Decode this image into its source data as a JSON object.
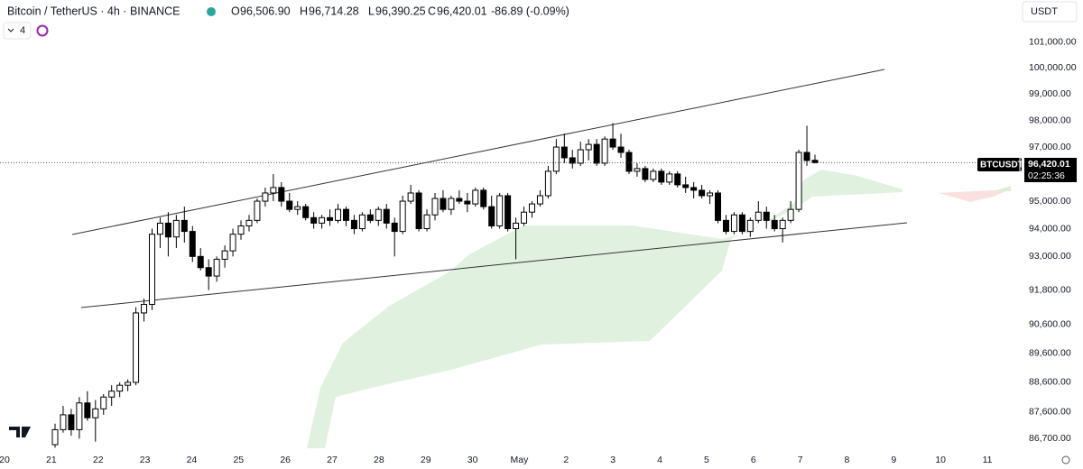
{
  "header": {
    "title": "Bitcoin / TetherUS · 4h · BINANCE",
    "open_label": "O",
    "open": "96,506.90",
    "high_label": "H",
    "high": "96,714.28",
    "low_label": "L",
    "low": "96,390.25",
    "close_label": "C",
    "close": "96,420.01",
    "change": "-86.89 (-0.09%)",
    "currency": "USDT",
    "indicator_count": "4"
  },
  "price_tag": {
    "symbol": "BTCUSDT",
    "price": "96,420.01",
    "countdown": "02:25:36"
  },
  "chart_data": {
    "type": "candlestick",
    "log_scale": true,
    "up_color": "#ffffff",
    "down_color": "#000000",
    "ylim": [
      86290,
      102650
    ],
    "yticks": [
      {
        "value": 86700,
        "label": "86,700.00"
      },
      {
        "value": 87600,
        "label": "87,600.00"
      },
      {
        "value": 88600,
        "label": "88,600.00"
      },
      {
        "value": 89600,
        "label": "89,600.00"
      },
      {
        "value": 90600,
        "label": "90,600.00"
      },
      {
        "value": 91800,
        "label": "91,800.00"
      },
      {
        "value": 93000,
        "label": "93,000.00"
      },
      {
        "value": 94000,
        "label": "94,000.00"
      },
      {
        "value": 95000,
        "label": "95,000.00"
      },
      {
        "value": 97000,
        "label": "97,000.00"
      },
      {
        "value": 98000,
        "label": "98,000.00"
      },
      {
        "value": 99000,
        "label": "99,000.00"
      },
      {
        "value": 100000,
        "label": "100,000.00"
      },
      {
        "value": 101000,
        "label": "101,000.00"
      }
    ],
    "xtick_labels": [
      "20",
      "21",
      "22",
      "23",
      "24",
      "25",
      "26",
      "27",
      "28",
      "29",
      "30",
      "May",
      "2",
      "3",
      "4",
      "5",
      "6",
      "7",
      "8",
      "9",
      "10",
      "11"
    ],
    "candles": [
      [
        86500,
        87200,
        86400,
        87000
      ],
      [
        87000,
        87800,
        86900,
        87500
      ],
      [
        87500,
        87700,
        86800,
        87000
      ],
      [
        87000,
        88100,
        86700,
        87900
      ],
      [
        87900,
        88300,
        87300,
        87400
      ],
      [
        87400,
        88000,
        86600,
        87700
      ],
      [
        87700,
        88200,
        87500,
        88100
      ],
      [
        88100,
        88500,
        87800,
        88300
      ],
      [
        88300,
        88600,
        88100,
        88500
      ],
      [
        88500,
        88700,
        88300,
        88600
      ],
      [
        88600,
        91200,
        88500,
        91000
      ],
      [
        91000,
        91500,
        90700,
        91300
      ],
      [
        91300,
        94000,
        91100,
        93800
      ],
      [
        93800,
        94400,
        93300,
        94200
      ],
      [
        94200,
        94600,
        93000,
        93700
      ],
      [
        93700,
        94500,
        93300,
        94300
      ],
      [
        94300,
        94800,
        93500,
        93900
      ],
      [
        93900,
        94100,
        92800,
        93000
      ],
      [
        93000,
        93300,
        92500,
        92600
      ],
      [
        92600,
        92900,
        91800,
        92300
      ],
      [
        92300,
        93000,
        92100,
        92900
      ],
      [
        92900,
        93400,
        92600,
        93200
      ],
      [
        93200,
        94000,
        93000,
        93800
      ],
      [
        93800,
        94300,
        93600,
        94100
      ],
      [
        94100,
        94500,
        93900,
        94300
      ],
      [
        94300,
        95100,
        94200,
        95000
      ],
      [
        95000,
        95500,
        94800,
        95300
      ],
      [
        95300,
        96000,
        95000,
        95500
      ],
      [
        95500,
        95700,
        94800,
        95000
      ],
      [
        95000,
        95300,
        94600,
        94700
      ],
      [
        94700,
        95000,
        94500,
        94800
      ],
      [
        94800,
        94900,
        94300,
        94400
      ],
      [
        94400,
        94600,
        94000,
        94200
      ],
      [
        94200,
        94500,
        94000,
        94400
      ],
      [
        94400,
        94700,
        94100,
        94300
      ],
      [
        94300,
        94900,
        94200,
        94700
      ],
      [
        94700,
        94800,
        94100,
        94300
      ],
      [
        94300,
        94500,
        93800,
        94000
      ],
      [
        94000,
        94600,
        93900,
        94500
      ],
      [
        94500,
        94700,
        94200,
        94300
      ],
      [
        94300,
        94800,
        94100,
        94700
      ],
      [
        94700,
        94900,
        94000,
        94200
      ],
      [
        94200,
        94400,
        93000,
        93900
      ],
      [
        93900,
        95200,
        93800,
        95000
      ],
      [
        95000,
        95600,
        94900,
        95300
      ],
      [
        95300,
        95400,
        93900,
        94000
      ],
      [
        94000,
        94700,
        93900,
        94500
      ],
      [
        94500,
        95300,
        94300,
        95100
      ],
      [
        95100,
        95400,
        94600,
        94700
      ],
      [
        94700,
        95200,
        94500,
        95100
      ],
      [
        95100,
        95400,
        94900,
        95000
      ],
      [
        95000,
        95300,
        94600,
        94900
      ],
      [
        94900,
        95500,
        94800,
        95400
      ],
      [
        95400,
        95500,
        94700,
        94800
      ],
      [
        94800,
        95200,
        94000,
        94100
      ],
      [
        94100,
        95300,
        94000,
        95200
      ],
      [
        95200,
        95300,
        93900,
        94000
      ],
      [
        94000,
        94400,
        92900,
        94200
      ],
      [
        94200,
        94800,
        94100,
        94600
      ],
      [
        94600,
        95000,
        94400,
        94900
      ],
      [
        94900,
        95400,
        94800,
        95200
      ],
      [
        95200,
        96300,
        95100,
        96100
      ],
      [
        96100,
        97300,
        96000,
        97000
      ],
      [
        97000,
        97500,
        96400,
        96600
      ],
      [
        96600,
        96900,
        96200,
        96400
      ],
      [
        96400,
        97200,
        96300,
        96900
      ],
      [
        96900,
        97300,
        96500,
        97100
      ],
      [
        97100,
        97300,
        96300,
        96400
      ],
      [
        96400,
        97400,
        96300,
        97300
      ],
      [
        97300,
        97900,
        96900,
        97000
      ],
      [
        97000,
        97500,
        96600,
        96800
      ],
      [
        96800,
        96900,
        96000,
        96100
      ],
      [
        96100,
        96400,
        95900,
        96200
      ],
      [
        96200,
        96300,
        95700,
        95800
      ],
      [
        95800,
        96200,
        95700,
        96100
      ],
      [
        96100,
        96200,
        95600,
        95700
      ],
      [
        95700,
        96100,
        95600,
        96000
      ],
      [
        96000,
        96100,
        95500,
        95600
      ],
      [
        95600,
        95900,
        95300,
        95500
      ],
      [
        95500,
        95700,
        95100,
        95400
      ],
      [
        95400,
        95600,
        95100,
        95200
      ],
      [
        95200,
        95400,
        94900,
        95300
      ],
      [
        95300,
        95400,
        94200,
        94300
      ],
      [
        94300,
        94500,
        93800,
        93900
      ],
      [
        93900,
        94600,
        93800,
        94500
      ],
      [
        94500,
        94600,
        93800,
        93900
      ],
      [
        93900,
        94400,
        93700,
        94300
      ],
      [
        94300,
        95000,
        94200,
        94600
      ],
      [
        94600,
        94800,
        94000,
        94300
      ],
      [
        94300,
        94500,
        93900,
        94000
      ],
      [
        94000,
        94400,
        93500,
        94300
      ],
      [
        94300,
        95000,
        94200,
        94700
      ],
      [
        94700,
        96900,
        94600,
        96800
      ],
      [
        96800,
        97800,
        96300,
        96500
      ],
      [
        96506.9,
        96714.28,
        96390.25,
        96420.01
      ]
    ]
  }
}
